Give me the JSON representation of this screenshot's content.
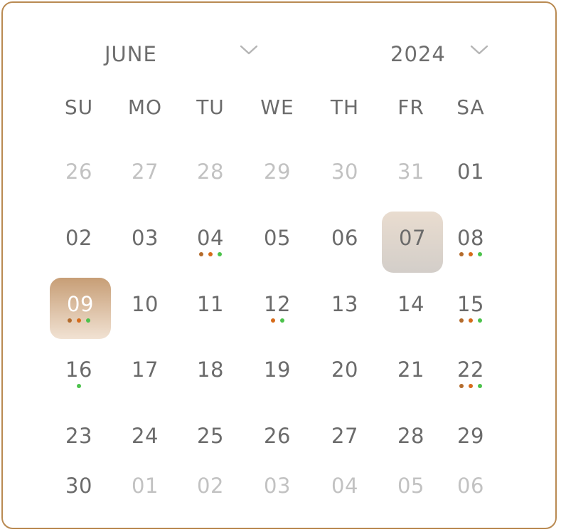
{
  "month_picker": {
    "value": "JUNE",
    "icon": "chevron-down-icon"
  },
  "year_picker": {
    "value": "2024",
    "icon": "chevron-down-icon"
  },
  "weekdays": [
    "SU",
    "MO",
    "TU",
    "WE",
    "TH",
    "FR",
    "SA"
  ],
  "colors": {
    "border": "#b98a52",
    "text": "#6b6b6b",
    "muted_text": "#c2c2c2",
    "dot_orange_dark": "#b36b2c",
    "dot_orange": "#d66b1a",
    "dot_green": "#4cc24c"
  },
  "weeks": [
    [
      {
        "label": "26",
        "muted": true
      },
      {
        "label": "27",
        "muted": true
      },
      {
        "label": "28",
        "muted": true
      },
      {
        "label": "29",
        "muted": true
      },
      {
        "label": "30",
        "muted": true
      },
      {
        "label": "31",
        "muted": true
      },
      {
        "label": "01"
      }
    ],
    [
      {
        "label": "02"
      },
      {
        "label": "03"
      },
      {
        "label": "04",
        "dots": [
          "#b36b2c",
          "#d66b1a",
          "#4cc24c"
        ]
      },
      {
        "label": "05"
      },
      {
        "label": "06"
      },
      {
        "label": "07",
        "state": "today"
      },
      {
        "label": "08",
        "dots": [
          "#b36b2c",
          "#d66b1a",
          "#4cc24c"
        ]
      }
    ],
    [
      {
        "label": "09",
        "state": "selected",
        "dots": [
          "#b36b2c",
          "#d66b1a",
          "#4cc24c"
        ]
      },
      {
        "label": "10"
      },
      {
        "label": "11"
      },
      {
        "label": "12",
        "dots": [
          "#d66b1a",
          "#4cc24c"
        ]
      },
      {
        "label": "13"
      },
      {
        "label": "14"
      },
      {
        "label": "15",
        "dots": [
          "#b36b2c",
          "#d66b1a",
          "#4cc24c"
        ]
      }
    ],
    [
      {
        "label": "16",
        "dots": [
          "#4cc24c"
        ]
      },
      {
        "label": "17"
      },
      {
        "label": "18"
      },
      {
        "label": "19"
      },
      {
        "label": "20"
      },
      {
        "label": "21"
      },
      {
        "label": "22",
        "dots": [
          "#b36b2c",
          "#d66b1a",
          "#4cc24c"
        ]
      }
    ],
    [
      {
        "label": "23"
      },
      {
        "label": "24"
      },
      {
        "label": "25"
      },
      {
        "label": "26"
      },
      {
        "label": "27"
      },
      {
        "label": "28"
      },
      {
        "label": "29"
      }
    ],
    [
      {
        "label": "30"
      },
      {
        "label": "01",
        "muted": true
      },
      {
        "label": "02",
        "muted": true
      },
      {
        "label": "03",
        "muted": true
      },
      {
        "label": "04",
        "muted": true
      },
      {
        "label": "05",
        "muted": true
      },
      {
        "label": "06",
        "muted": true
      }
    ]
  ]
}
